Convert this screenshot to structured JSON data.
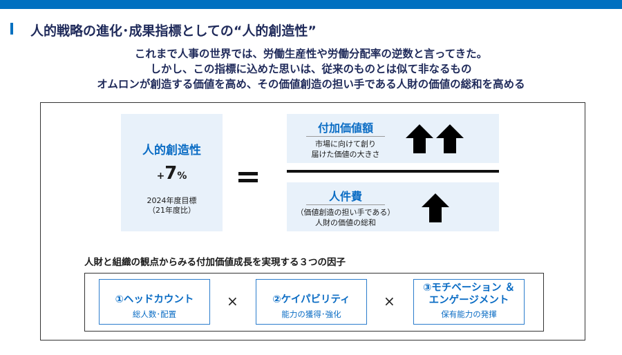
{
  "title": "人的戦略の進化･成果指標としての“人的創造性”",
  "subtitle": [
    "これまで人事の世界では、労働生産性や労働分配率の逆数と言ってきた。",
    "しかし、この指標に込めた思いは、従来のものとは似て非なるもの",
    "オムロンが創造する価値を高め、その価値創造の担い手である人財の価値の総和を高める"
  ],
  "metric": {
    "name": "人的創造性",
    "plus": "+",
    "value": "7",
    "unit": "%",
    "note1": "2024年度目標",
    "note2": "（21年度比）"
  },
  "numerator": {
    "title": "付加価値額",
    "desc1": "市場に向けて創り",
    "desc2": "届けた価値の大きさ",
    "arrows": 2
  },
  "denominator": {
    "title": "人件費",
    "desc1": "（価値創造の担い手である）",
    "desc2": "人財の価値の総和",
    "arrows": 1
  },
  "factors_heading": "人財と組織の観点からみる付加価値成長を実現する３つの因子",
  "times": "×",
  "factors": [
    {
      "title": "①ヘッドカウント",
      "title2": "",
      "desc": "総人数･配置"
    },
    {
      "title": "②ケイパビリティ",
      "title2": "",
      "desc": "能力の獲得･強化"
    },
    {
      "title": "③モチベーション ＆",
      "title2": "エンゲージメント",
      "desc": "保有能力の発揮"
    }
  ],
  "colors": {
    "accent": "#0070c0",
    "text_blue": "#0a6cc4",
    "panel": "#e8f1fa"
  }
}
